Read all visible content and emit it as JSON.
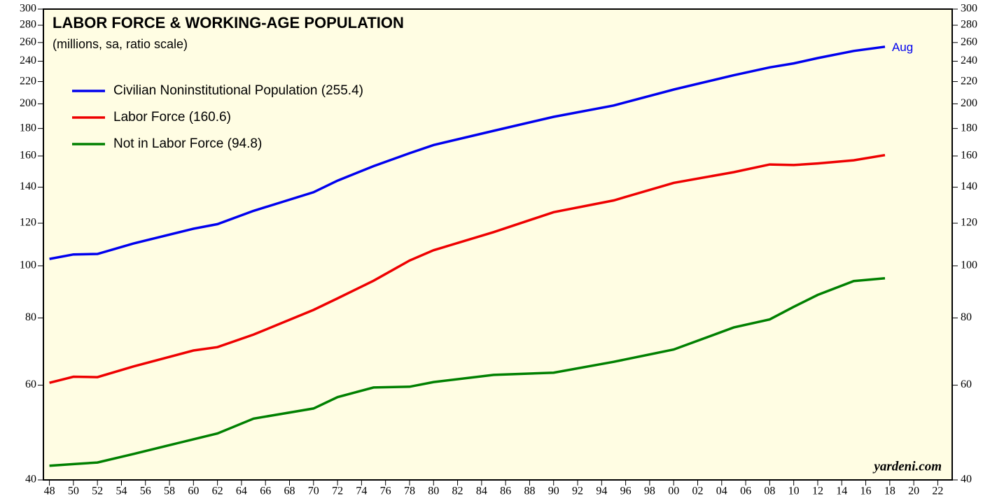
{
  "chart_data": {
    "type": "line",
    "title": "LABOR FORCE & WORKING-AGE POPULATION",
    "subtitle": "(millions, sa, ratio scale)",
    "annotation": "Aug",
    "source": "yardeni.com",
    "log_scale": true,
    "background": "#fffde3",
    "x": [
      1948,
      1950,
      1952,
      1955,
      1960,
      1962,
      1965,
      1970,
      1972,
      1975,
      1978,
      1980,
      1985,
      1990,
      1995,
      2000,
      2005,
      2008,
      2010,
      2012,
      2015,
      2017.6
    ],
    "series": [
      {
        "name": "Civilian Noninstitutional Population (255.4)",
        "color": "#0000ee",
        "values": [
          103,
          105,
          105.2,
          110,
          117.2,
          119.5,
          126.5,
          137,
          144,
          153.2,
          161.9,
          167.7,
          178.2,
          189.2,
          198.6,
          212.6,
          226,
          233.8,
          237.8,
          243.3,
          250.8,
          255.4
        ]
      },
      {
        "name": "Labor Force (160.6)",
        "color": "#ee0000",
        "values": [
          60.6,
          62.2,
          62.1,
          65,
          69.6,
          70.6,
          74.5,
          82.8,
          87,
          93.8,
          102.3,
          106.9,
          115.5,
          125.8,
          132.3,
          142.6,
          149.3,
          154.3,
          153.9,
          155,
          157.1,
          160.6
        ]
      },
      {
        "name": "Not in Labor Force (94.8)",
        "color": "#008000",
        "values": [
          42.5,
          42.8,
          43.1,
          44.7,
          47.6,
          48.8,
          52,
          54.3,
          57,
          59.4,
          59.6,
          60.8,
          62.7,
          63.3,
          66.3,
          69.9,
          76.8,
          79.5,
          83.9,
          88.3,
          93.7,
          94.8
        ]
      }
    ],
    "xlim": [
      1947.5,
      2023.2
    ],
    "ylim": [
      40,
      300
    ],
    "yticks": [
      40,
      60,
      80,
      100,
      120,
      140,
      160,
      180,
      200,
      220,
      240,
      260,
      280,
      300
    ],
    "xticks": [
      {
        "value": 1948,
        "label": "48"
      },
      {
        "value": 1950,
        "label": "50"
      },
      {
        "value": 1952,
        "label": "52"
      },
      {
        "value": 1954,
        "label": "54"
      },
      {
        "value": 1956,
        "label": "56"
      },
      {
        "value": 1958,
        "label": "58"
      },
      {
        "value": 1960,
        "label": "60"
      },
      {
        "value": 1962,
        "label": "62"
      },
      {
        "value": 1964,
        "label": "64"
      },
      {
        "value": 1966,
        "label": "66"
      },
      {
        "value": 1968,
        "label": "68"
      },
      {
        "value": 1970,
        "label": "70"
      },
      {
        "value": 1972,
        "label": "72"
      },
      {
        "value": 1974,
        "label": "74"
      },
      {
        "value": 1976,
        "label": "76"
      },
      {
        "value": 1978,
        "label": "78"
      },
      {
        "value": 1980,
        "label": "80"
      },
      {
        "value": 1982,
        "label": "82"
      },
      {
        "value": 1984,
        "label": "84"
      },
      {
        "value": 1986,
        "label": "86"
      },
      {
        "value": 1988,
        "label": "88"
      },
      {
        "value": 1990,
        "label": "90"
      },
      {
        "value": 1992,
        "label": "92"
      },
      {
        "value": 1994,
        "label": "94"
      },
      {
        "value": 1996,
        "label": "96"
      },
      {
        "value": 1998,
        "label": "98"
      },
      {
        "value": 2000,
        "label": "00"
      },
      {
        "value": 2002,
        "label": "02"
      },
      {
        "value": 2004,
        "label": "04"
      },
      {
        "value": 2006,
        "label": "06"
      },
      {
        "value": 2008,
        "label": "08"
      },
      {
        "value": 2010,
        "label": "10"
      },
      {
        "value": 2012,
        "label": "12"
      },
      {
        "value": 2014,
        "label": "14"
      },
      {
        "value": 2016,
        "label": "16"
      },
      {
        "value": 2018,
        "label": "18"
      },
      {
        "value": 2020,
        "label": "20"
      },
      {
        "value": 2022,
        "label": "22"
      }
    ]
  }
}
